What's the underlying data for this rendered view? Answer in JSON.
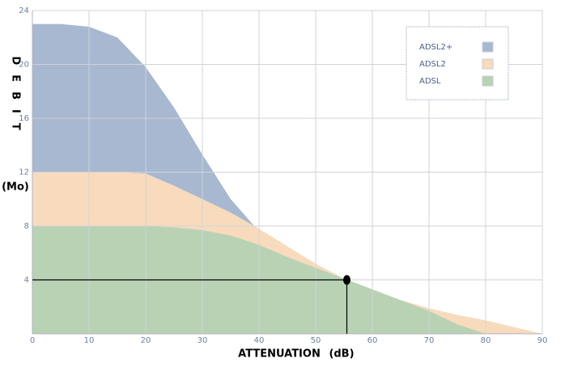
{
  "chart_data": {
    "type": "area",
    "y_label": "DEBIT",
    "y_unit": "(Mo)",
    "x_label": "ATTENUATION",
    "x_unit": "(dB)",
    "x": [
      0,
      5,
      10,
      15,
      20,
      25,
      30,
      35,
      40,
      45,
      50,
      55,
      60,
      65,
      70,
      75,
      80,
      85,
      90
    ],
    "series": [
      {
        "name": "ADSL2+",
        "color": "#a7b8d0",
        "values": [
          23,
          23,
          22.8,
          22,
          19.8,
          16.8,
          13.3,
          10,
          7.6,
          5.9,
          4.6,
          3.8,
          null,
          null,
          null,
          null,
          null,
          null,
          null
        ]
      },
      {
        "name": "ADSL2",
        "color": "#f8dbbd",
        "values": [
          12,
          12,
          12,
          12,
          11.9,
          11,
          10,
          9,
          7.8,
          6.5,
          5.2,
          4.1,
          3.2,
          2.5,
          1.9,
          1.4,
          1.0,
          0.5,
          0
        ]
      },
      {
        "name": "ADSL",
        "color": "#b9d2b4",
        "values": [
          8,
          8,
          8,
          8,
          8,
          7.9,
          7.7,
          7.3,
          6.6,
          5.7,
          4.9,
          4.1,
          3.3,
          2.5,
          1.7,
          0.7,
          0,
          null,
          null
        ]
      }
    ],
    "xlim": [
      0,
      90
    ],
    "xticks": [
      0,
      10,
      20,
      30,
      40,
      50,
      60,
      70,
      80,
      90
    ],
    "ylim": [
      0,
      24
    ],
    "yticks": [
      4,
      8,
      12,
      16,
      20,
      24
    ],
    "grid": true,
    "legend": "upper-right",
    "marker": {
      "x": 55.5,
      "y": 4
    }
  }
}
